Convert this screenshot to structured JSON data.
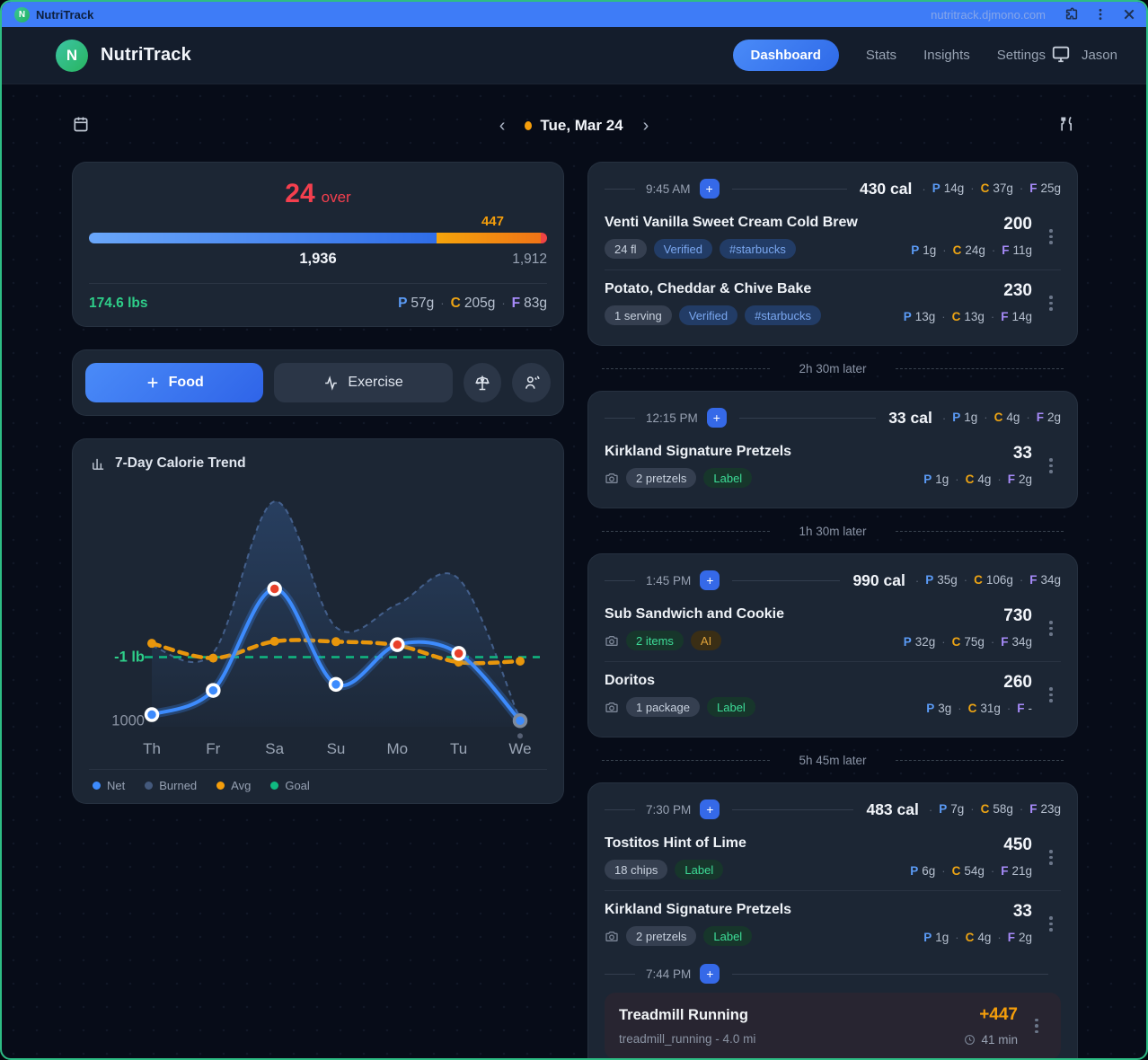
{
  "window": {
    "title": "NutriTrack",
    "url": "nutritrack.djmono.com"
  },
  "header": {
    "logo_letter": "N",
    "app_name": "NutriTrack",
    "nav": [
      {
        "label": "Dashboard",
        "active": true
      },
      {
        "label": "Stats",
        "active": false
      },
      {
        "label": "Insights",
        "active": false
      },
      {
        "label": "Settings",
        "active": false
      }
    ],
    "user": "Jason"
  },
  "date_bar": {
    "date_label": "Tue, Mar 24"
  },
  "summary": {
    "over_value": "24",
    "over_label": "over",
    "exercise_calories": "447",
    "consumed": "1,936",
    "budget": "1,912",
    "weight": "174.6 lbs",
    "macros": [
      {
        "k": "P",
        "v": "57g"
      },
      {
        "k": "C",
        "v": "205g"
      },
      {
        "k": "F",
        "v": "83g"
      }
    ],
    "bar": {
      "blue_pct": 75.8,
      "orange_pct": 22.8,
      "red_pct": 1.4
    }
  },
  "actions": {
    "food_label": "Food",
    "exercise_label": "Exercise"
  },
  "chart": {
    "title": "7-Day Calorie Trend",
    "goal_label": "-1 lb",
    "y_tick": "1000",
    "legend": [
      {
        "label": "Net",
        "color": "#3d8bfd"
      },
      {
        "label": "Burned",
        "color": "#44597c"
      },
      {
        "label": "Avg",
        "color": "#f59e0b"
      },
      {
        "label": "Goal",
        "color": "#10b981"
      }
    ]
  },
  "chart_data": {
    "type": "line",
    "title": "7-Day Calorie Trend",
    "categories": [
      "Th",
      "Fr",
      "Sa",
      "Su",
      "Mo",
      "Tu",
      "We"
    ],
    "series": [
      {
        "name": "Net",
        "values": [
          1080,
          1440,
          2950,
          1530,
          2120,
          1990,
          990
        ],
        "color": "#3d8bfd",
        "style": "solid",
        "point_fills": [
          "#3d8bfd",
          "#3d8bfd",
          "#e8402a",
          "#3d8bfd",
          "#e8402a",
          "#e8402a",
          "#3d8bfd"
        ],
        "point_rings": [
          "#ffffff",
          "#ffffff",
          "#ffffff",
          "#ffffff",
          "#ffffff",
          "#ffffff",
          "#7e8a9c"
        ]
      },
      {
        "name": "Burned",
        "values": [
          2100,
          2000,
          4250,
          2380,
          2720,
          3100,
          1000
        ],
        "color": "#4a6899",
        "style": "dashed-area"
      },
      {
        "name": "Avg",
        "values": [
          2140,
          1920,
          2170,
          2165,
          2110,
          1860,
          1875
        ],
        "color": "#e8960c",
        "style": "dashed"
      },
      {
        "name": "Goal",
        "values": [
          1936,
          1936,
          1936,
          1936,
          1936,
          1936,
          1936
        ],
        "color": "#10b981",
        "style": "dashed-flat"
      }
    ],
    "goal_value": 1936,
    "y_tick_value": 1000,
    "ylim": [
      900,
      4400
    ],
    "legend_position": "bottom",
    "grid": false
  },
  "timeline": {
    "groups": [
      {
        "time": "9:45 AM",
        "total": "430 cal",
        "macros": [
          {
            "k": "P",
            "v": "14g"
          },
          {
            "k": "C",
            "v": "37g"
          },
          {
            "k": "F",
            "v": "25g"
          }
        ],
        "items": [
          {
            "name": "Venti Vanilla Sweet Cream Cold Brew",
            "cal": "200",
            "camera": false,
            "pills": [
              {
                "text": "24 fl",
                "type": "gray"
              },
              {
                "text": "Verified",
                "type": "blue"
              },
              {
                "text": "#starbucks",
                "type": "blue"
              }
            ],
            "macros": [
              {
                "k": "P",
                "v": "1g"
              },
              {
                "k": "C",
                "v": "24g"
              },
              {
                "k": "F",
                "v": "11g"
              }
            ]
          },
          {
            "name": "Potato, Cheddar & Chive Bake",
            "cal": "230",
            "camera": false,
            "pills": [
              {
                "text": "1 serving",
                "type": "gray"
              },
              {
                "text": "Verified",
                "type": "blue"
              },
              {
                "text": "#starbucks",
                "type": "blue"
              }
            ],
            "macros": [
              {
                "k": "P",
                "v": "13g"
              },
              {
                "k": "C",
                "v": "13g"
              },
              {
                "k": "F",
                "v": "14g"
              }
            ]
          }
        ],
        "gap_after": "2h 30m later"
      },
      {
        "time": "12:15 PM",
        "total": "33 cal",
        "macros": [
          {
            "k": "P",
            "v": "1g"
          },
          {
            "k": "C",
            "v": "4g"
          },
          {
            "k": "F",
            "v": "2g"
          }
        ],
        "items": [
          {
            "name": "Kirkland Signature Pretzels",
            "cal": "33",
            "camera": true,
            "pills": [
              {
                "text": "2 pretzels",
                "type": "gray"
              },
              {
                "text": "Label",
                "type": "green"
              }
            ],
            "macros": [
              {
                "k": "P",
                "v": "1g"
              },
              {
                "k": "C",
                "v": "4g"
              },
              {
                "k": "F",
                "v": "2g"
              }
            ]
          }
        ],
        "gap_after": "1h 30m later"
      },
      {
        "time": "1:45 PM",
        "total": "990 cal",
        "macros": [
          {
            "k": "P",
            "v": "35g"
          },
          {
            "k": "C",
            "v": "106g"
          },
          {
            "k": "F",
            "v": "34g"
          }
        ],
        "items": [
          {
            "name": "Sub Sandwich and Cookie",
            "cal": "730",
            "camera": true,
            "pills": [
              {
                "text": "2 items",
                "type": "green"
              },
              {
                "text": "AI",
                "type": "amber"
              }
            ],
            "macros": [
              {
                "k": "P",
                "v": "32g"
              },
              {
                "k": "C",
                "v": "75g"
              },
              {
                "k": "F",
                "v": "34g"
              }
            ]
          },
          {
            "name": "Doritos",
            "cal": "260",
            "camera": true,
            "pills": [
              {
                "text": "1 package",
                "type": "gray"
              },
              {
                "text": "Label",
                "type": "green"
              }
            ],
            "macros": [
              {
                "k": "P",
                "v": "3g"
              },
              {
                "k": "C",
                "v": "31g"
              },
              {
                "k": "F",
                "v": "-"
              }
            ]
          }
        ],
        "gap_after": "5h 45m later"
      },
      {
        "time": "7:30 PM",
        "total": "483 cal",
        "macros": [
          {
            "k": "P",
            "v": "7g"
          },
          {
            "k": "C",
            "v": "58g"
          },
          {
            "k": "F",
            "v": "23g"
          }
        ],
        "items": [
          {
            "name": "Tostitos Hint of Lime",
            "cal": "450",
            "camera": false,
            "pills": [
              {
                "text": "18 chips",
                "type": "gray"
              },
              {
                "text": "Label",
                "type": "green"
              }
            ],
            "macros": [
              {
                "k": "P",
                "v": "6g"
              },
              {
                "k": "C",
                "v": "54g"
              },
              {
                "k": "F",
                "v": "21g"
              }
            ]
          },
          {
            "name": "Kirkland Signature Pretzels",
            "cal": "33",
            "camera": true,
            "pills": [
              {
                "text": "2 pretzels",
                "type": "gray"
              },
              {
                "text": "Label",
                "type": "green"
              }
            ],
            "macros": [
              {
                "k": "P",
                "v": "1g"
              },
              {
                "k": "C",
                "v": "4g"
              },
              {
                "k": "F",
                "v": "2g"
              }
            ]
          }
        ],
        "second_time": "7:44 PM",
        "exercise": {
          "name": "Treadmill Running",
          "detail": "treadmill_running - 4.0 mi",
          "cal": "+447",
          "duration": "41 min"
        }
      }
    ]
  }
}
